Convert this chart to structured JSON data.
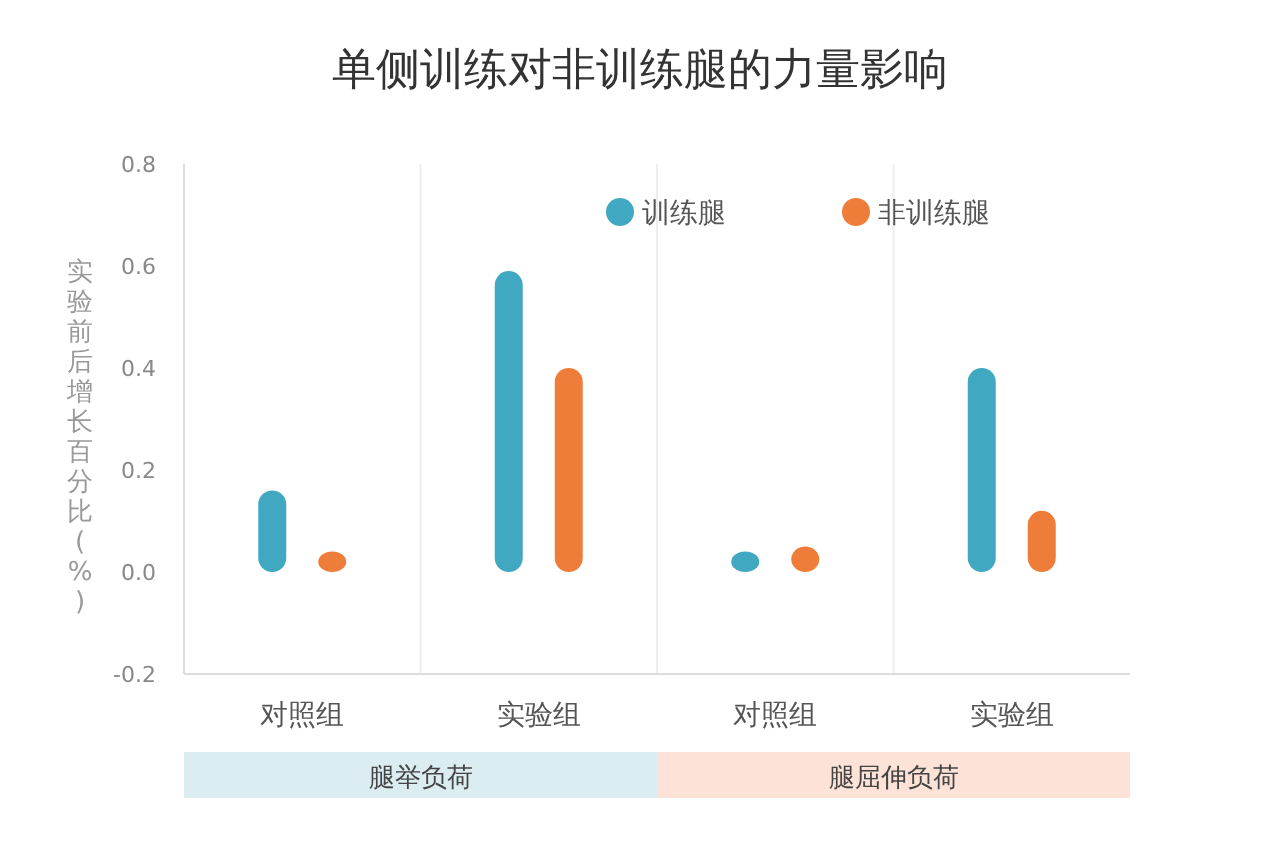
{
  "chart_data": {
    "type": "bar",
    "title": "单侧训练对非训练腿的力量影响",
    "ylabel": "实验前后增长百分比(%)",
    "categories": [
      "对照组",
      "实验组",
      "对照组",
      "实验组"
    ],
    "series": [
      {
        "name": "训练腿",
        "color": "#41a8c2",
        "values": [
          0.16,
          0.59,
          0.04,
          0.4
        ]
      },
      {
        "name": "非训练腿",
        "color": "#ee7d3a",
        "values": [
          0.04,
          0.4,
          0.05,
          0.12
        ]
      }
    ],
    "annotations": [
      "腿举负荷",
      "腿屈伸负荷"
    ],
    "ylim": [
      -0.2,
      0.8
    ],
    "yticks": [
      {
        "value": -0.2,
        "label": "-0.2"
      },
      {
        "value": 0,
        "label": "0.0"
      },
      {
        "value": 0.2,
        "label": "0.2"
      },
      {
        "value": 0.4,
        "label": "0.4"
      },
      {
        "value": 0.6,
        "label": "0.6"
      },
      {
        "value": 0.8,
        "label": "0.8"
      }
    ],
    "legend": "top right",
    "grid": false
  }
}
